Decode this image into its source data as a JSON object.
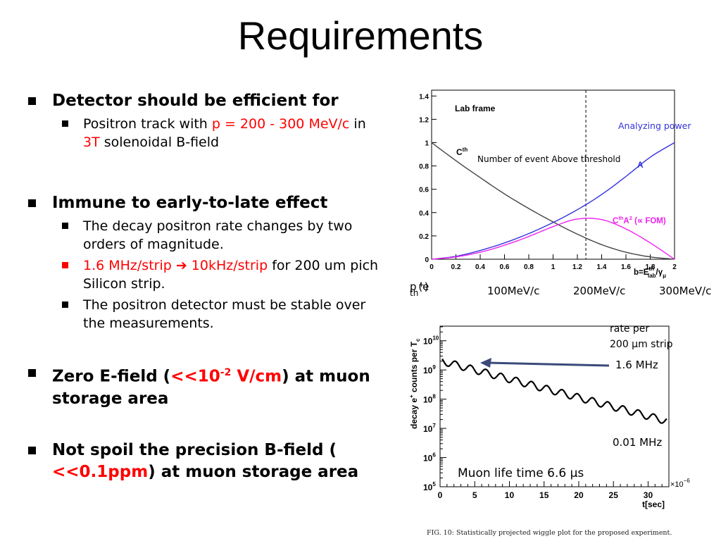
{
  "title": "Requirements",
  "bullets": {
    "b1": {
      "label": "Detector should be efficient for",
      "sub": {
        "pre": "Positron track with ",
        "range": "p = 200 - 300 MeV/c",
        "mid": " in ",
        "field": "3T",
        "post": " solenoidal B-field"
      }
    },
    "b2": {
      "label": "Immune to early-to-late effect",
      "s1": "The decay positron rate changes by two orders of magnitude.",
      "s2_red": "1.6 MHz/strip ➔ 10kHz/strip",
      "s2_rest": " for 200 um pich Silicon strip.",
      "s3": "The positron detector must be stable over the measurements."
    },
    "b3": {
      "pre": "Zero E-field (",
      "red_a": "<<10",
      "sup": "-2",
      "red_b": " V/cm",
      "post": ") at muon storage area"
    },
    "b4": {
      "pre": "Not spoil the precision B-field ( ",
      "red": "<<0.1ppm",
      "post": ") at muon storage area"
    }
  },
  "mom_row": {
    "p": "p",
    "p_sub": "th",
    "p_tail": "(e",
    "p_sup": "+",
    "p_close": ")",
    "m1": "100MeV/c",
    "m2": "200MeV/c",
    "m3": "300MeV/c"
  },
  "caption": "FIG. 10: Statistically projected wiggle plot for the proposed experiment.",
  "chart_data": [
    {
      "type": "line",
      "title": "Lab frame",
      "xlim": [
        0,
        2
      ],
      "ylim": [
        0,
        1.45
      ],
      "x_ticks": [
        "0",
        "0.2",
        "0.4",
        "0.6",
        "0.8",
        "1",
        "1.2",
        "1.4",
        "1.6",
        "1.8",
        "2"
      ],
      "y_ticks": [
        "0",
        "0.2",
        "0.4",
        "0.6",
        "0.8",
        "1",
        "1.2",
        "1.4"
      ],
      "xlabel": "b=E",
      "xlabel_sup": "th",
      "xlabel_sub": "lab",
      "xlabel_tail": "/γ",
      "xlabel_tail_sub": "μ",
      "threshold_x": 1.27,
      "annotations": {
        "analyzing": "Analyzing power",
        "nevent": "Number of event Above threshold",
        "cth": "C",
        "cth_sup": "th",
        "a": "A",
        "fom_c": "C",
        "fom_sup1": "th",
        "fom_a": "A",
        "fom_sup2": "2",
        "fom_tail": " (∝ FOM)"
      },
      "series": [
        {
          "key": "cth",
          "color": "#444444",
          "x": [
            0,
            0.2,
            0.4,
            0.6,
            0.8,
            1.0,
            1.2,
            1.4,
            1.6,
            1.8,
            2.0
          ],
          "y": [
            1.0,
            0.845,
            0.7,
            0.56,
            0.435,
            0.32,
            0.215,
            0.125,
            0.06,
            0.02,
            0.0
          ]
        },
        {
          "key": "a",
          "color": "#3333dd",
          "x": [
            0,
            0.2,
            0.4,
            0.6,
            0.8,
            1.0,
            1.2,
            1.4,
            1.6,
            1.8,
            2.0
          ],
          "y": [
            0.0,
            0.025,
            0.075,
            0.14,
            0.22,
            0.315,
            0.425,
            0.555,
            0.71,
            0.875,
            1.0
          ]
        },
        {
          "key": "fom",
          "color": "#ee22ee",
          "x": [
            0,
            0.2,
            0.4,
            0.6,
            0.8,
            1.0,
            1.2,
            1.4,
            1.6,
            1.8,
            2.0
          ],
          "y": [
            0.0,
            0.02,
            0.06,
            0.12,
            0.195,
            0.28,
            0.345,
            0.34,
            0.26,
            0.14,
            0.0
          ]
        }
      ]
    },
    {
      "type": "line",
      "title": "",
      "xlim": [
        0,
        33
      ],
      "ylim_log10": [
        5,
        10.5
      ],
      "x_ticks": [
        "0",
        "5",
        "10",
        "15",
        "20",
        "25",
        "30"
      ],
      "y_ticks": [
        "10",
        "10",
        "10",
        "10",
        "10",
        "10"
      ],
      "y_tick_sups": [
        "5",
        "6",
        "7",
        "8",
        "9",
        "10"
      ],
      "x_multiplier": "×10",
      "x_multiplier_sup": "−6",
      "xlabel": "t[sec]",
      "ylabel": "decay e",
      "ylabel_sup": "+",
      "ylabel_tail": " counts per T",
      "ylabel_tail_sub": "c",
      "annotations": {
        "rate_a": "rate per",
        "rate_b": "200 μm strip",
        "r_high": "1.6 MHz",
        "r_low": "0.01 MHz",
        "life": "Muon life time 6.6 μs"
      },
      "series": [
        {
          "key": "wiggle",
          "color": "#000000",
          "x_start": 0.3,
          "x_end": 32.7,
          "log10_start": 9.3,
          "log10_end": 7.25,
          "period": 2.2,
          "amp_log10": 0.12
        }
      ]
    }
  ],
  "colors": {
    "red": "#ff0000",
    "blue": "#3333dd",
    "magenta": "#ee22ee",
    "arrow": "#3a4a7a"
  }
}
